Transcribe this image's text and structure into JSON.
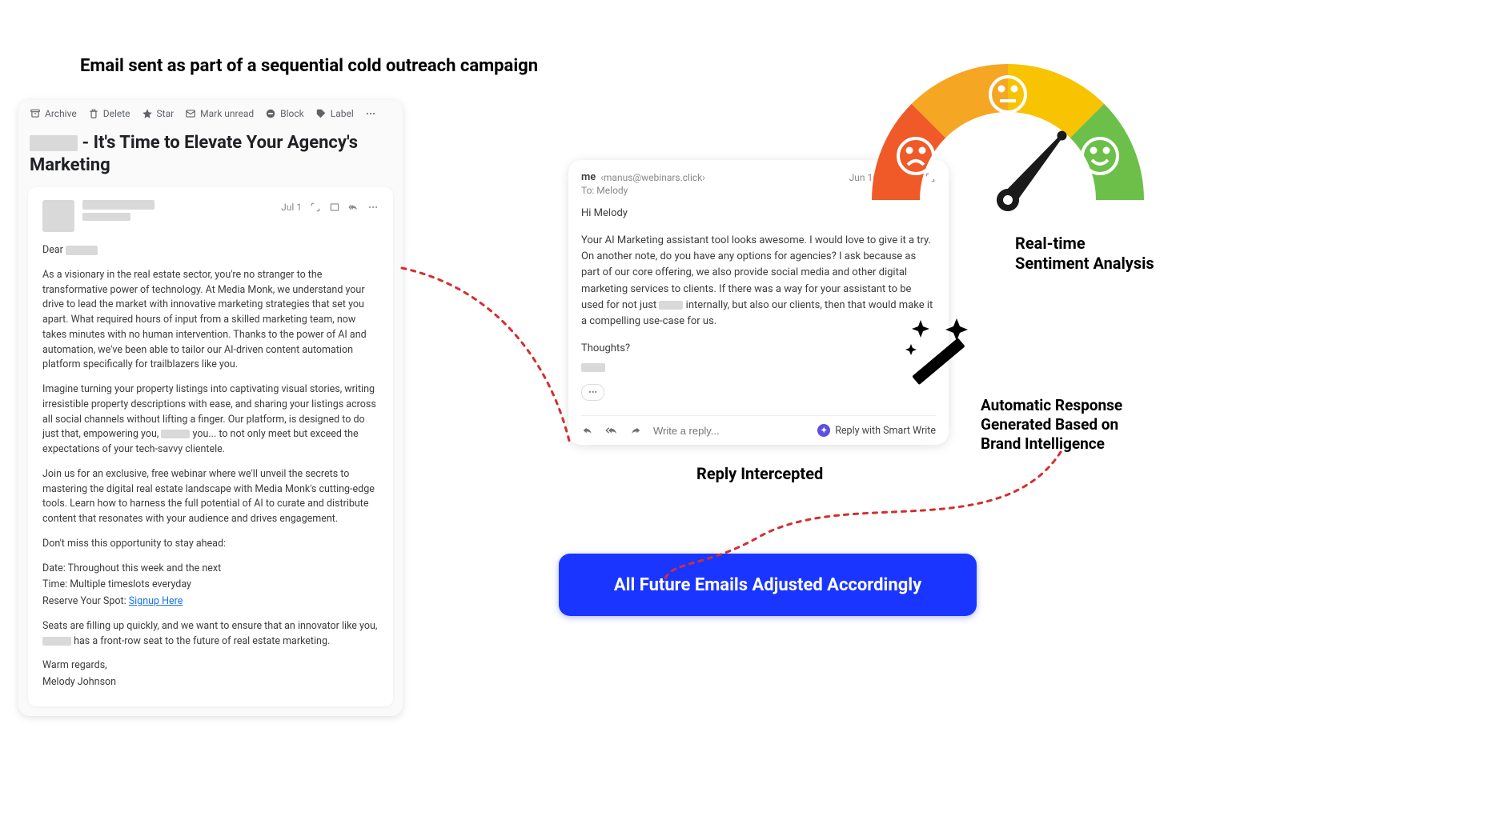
{
  "captions": {
    "top": "Email sent as part of a sequential cold outreach campaign",
    "reply_intercepted": "Reply Intercepted",
    "sentiment_line1": "Real-time",
    "sentiment_line2": "Sentiment Analysis",
    "autoresp_line1": "Automatic Response",
    "autoresp_line2": "Generated Based on",
    "autoresp_line3": "Brand Intelligence",
    "blue_pill": "All Future Emails Adjusted Accordingly"
  },
  "left_email": {
    "toolbar": {
      "archive": "Archive",
      "delete": "Delete",
      "star": "Star",
      "mark_unread": "Mark unread",
      "block": "Block",
      "label": "Label"
    },
    "subject_suffix": " - It's Time to Elevate Your Agency's Marketing",
    "date": "Jul 1",
    "greeting_prefix": "Dear ",
    "para1": "As a visionary in the real estate sector, you're no stranger to the transformative power of technology. At Media Monk, we understand your drive to lead the market with innovative marketing strategies that set you apart. What required hours of input from a skilled marketing team, now takes minutes with no human intervention. Thanks to the power of AI and automation, we've been able to tailor our AI-driven content automation platform specifically for trailblazers like you.",
    "para2_a": "Imagine turning your property listings into captivating visual stories, writing irresistible property descriptions with ease, and sharing your listings across all social channels without lifting a finger. Our platform, is designed to do just that, empowering you, ",
    "para2_b": " you... to not only meet but exceed the expectations of your tech-savvy clientele.",
    "para3": "Join us for an exclusive, free webinar where we'll unveil the secrets to mastering the digital real estate landscape with Media Monk's cutting-edge tools. Learn how to harness the full potential of AI to curate and distribute content that resonates with your audience and drives engagement.",
    "para4": "Don't miss this opportunity to stay ahead:",
    "detail_date": "Date: Throughout this week and the next",
    "detail_time": "Time: Multiple timeslots everyday",
    "detail_reserve_label": "Reserve Your Spot: ",
    "detail_reserve_link": "Signup Here",
    "para5_a": "Seats are filling up quickly, and we want to ensure that an innovator like you, ",
    "para5_b": " has a front-row seat to the future of real estate marketing.",
    "signoff1": "Warm regards,",
    "signoff2": "Melody Johnson"
  },
  "right_email": {
    "from_name": "me",
    "from_addr": "‹manus@webinars.click›",
    "date": "Jun 16",
    "to_line": "To: Melody",
    "greeting": "Hi Melody",
    "body_a": "Your AI Marketing assistant tool looks awesome. I would love to give it a try. On another note, do you have any options for agencies? I ask because as part of our core offering, we also provide social media and other digital marketing services to clients. If there was a way for your assistant to be used for not just ",
    "body_b": " internally, but also our clients, then that would make it a compelling use-case for us.",
    "thoughts": "Thoughts?",
    "reply_placeholder": "Write a reply...",
    "smart_write": "Reply with Smart Write"
  },
  "colors": {
    "gauge_red": "#f05a28",
    "gauge_orange": "#f5a623",
    "gauge_yellow": "#f8c300",
    "gauge_green": "#6cc04a",
    "dash_red": "#d32f2f",
    "blue": "#1a35ff",
    "link": "#1a73e8",
    "redact": "#d9d9d9"
  },
  "gauge": {
    "needle_angle_deg": 50
  }
}
